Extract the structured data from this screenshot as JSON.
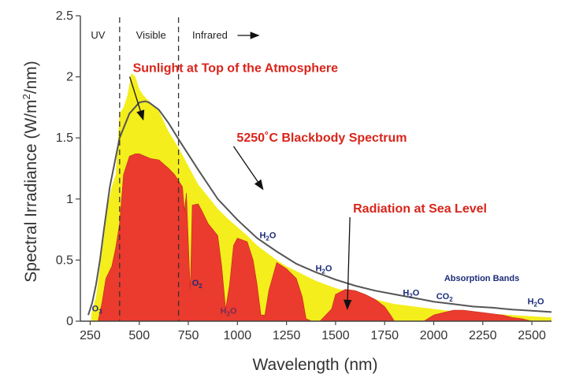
{
  "chart_data": {
    "type": "area",
    "xlabel": "Wavelength (nm)",
    "ylabel_main": "Spectral Irradiance (W/m",
    "ylabel_sup": "2",
    "ylabel_tail": "/nm)",
    "xlim": [
      200,
      2600
    ],
    "ylim": [
      0,
      2.5
    ],
    "x_ticks": [
      250,
      500,
      750,
      1000,
      1250,
      1500,
      1750,
      2000,
      2250,
      2500
    ],
    "y_ticks": [
      0,
      0.5,
      1,
      1.5,
      2,
      2.5
    ],
    "y_tick_labels": [
      "0",
      "0.5",
      "1",
      "1.5",
      "2",
      "2.5"
    ],
    "region_boundaries": [
      400,
      700
    ],
    "regions": [
      {
        "label": "UV",
        "x": 290
      },
      {
        "label": "Visible",
        "x": 560
      },
      {
        "label": "Infrared",
        "x": 860
      }
    ],
    "series": [
      {
        "name": "Sunlight at Top of the Atmosphere",
        "color": "#f4ee1c",
        "x": [
          255,
          280,
          300,
          320,
          340,
          360,
          380,
          400,
          420,
          440,
          460,
          480,
          500,
          520,
          550,
          600,
          650,
          700,
          750,
          800,
          850,
          900,
          950,
          1000,
          1050,
          1100,
          1150,
          1200,
          1250,
          1300,
          1350,
          1400,
          1450,
          1500,
          1550,
          1600,
          1650,
          1700,
          1750,
          1800,
          1850,
          1900,
          2000,
          2100,
          2200,
          2300,
          2400,
          2500,
          2600
        ],
        "y": [
          0.05,
          0.2,
          0.45,
          0.7,
          0.95,
          1.1,
          1.2,
          1.7,
          1.75,
          1.85,
          2.03,
          2.0,
          1.9,
          1.85,
          1.8,
          1.72,
          1.55,
          1.42,
          1.27,
          1.12,
          1.02,
          0.92,
          0.84,
          0.77,
          0.7,
          0.62,
          0.56,
          0.5,
          0.45,
          0.41,
          0.37,
          0.33,
          0.3,
          0.27,
          0.25,
          0.23,
          0.2,
          0.18,
          0.16,
          0.14,
          0.13,
          0.12,
          0.1,
          0.08,
          0.07,
          0.06,
          0.05,
          0.04,
          0.03
        ]
      },
      {
        "name": "5250°C Blackbody Spectrum",
        "color": "#555555",
        "x": [
          240,
          260,
          280,
          300,
          320,
          350,
          400,
          450,
          500,
          530,
          550,
          600,
          650,
          700,
          800,
          900,
          1000,
          1100,
          1200,
          1300,
          1400,
          1500,
          1600,
          1700,
          1800,
          1900,
          2000,
          2100,
          2200,
          2300,
          2400,
          2500,
          2600
        ],
        "y": [
          0.05,
          0.15,
          0.3,
          0.5,
          0.75,
          1.1,
          1.5,
          1.7,
          1.79,
          1.8,
          1.79,
          1.73,
          1.62,
          1.49,
          1.24,
          1.0,
          0.83,
          0.68,
          0.57,
          0.47,
          0.4,
          0.34,
          0.29,
          0.25,
          0.22,
          0.19,
          0.16,
          0.14,
          0.12,
          0.11,
          0.095,
          0.085,
          0.075
        ]
      },
      {
        "name": "Radiation at Sea Level",
        "color": "#ea3b2e",
        "x": [
          290,
          310,
          330,
          360,
          380,
          400,
          420,
          450,
          480,
          500,
          530,
          560,
          600,
          650,
          680,
          700,
          720,
          730,
          740,
          760,
          765,
          770,
          800,
          820,
          850,
          900,
          920,
          940,
          960,
          980,
          1000,
          1050,
          1080,
          1100,
          1120,
          1140,
          1160,
          1200,
          1250,
          1300,
          1330,
          1350,
          1380,
          1400,
          1420,
          1450,
          1480,
          1500,
          1550,
          1600,
          1650,
          1700,
          1750,
          1780,
          1800,
          1850,
          1900,
          1950,
          1970,
          2000,
          2050,
          2100,
          2150,
          2200,
          2250,
          2300,
          2350,
          2400,
          2450,
          2500,
          2550,
          2600
        ],
        "y": [
          0.0,
          0.15,
          0.35,
          0.45,
          0.6,
          0.8,
          1.2,
          1.35,
          1.37,
          1.37,
          1.35,
          1.33,
          1.32,
          1.25,
          1.2,
          1.15,
          1.1,
          0.9,
          1.05,
          0.25,
          0.6,
          0.95,
          0.96,
          0.9,
          0.8,
          0.7,
          0.45,
          0.1,
          0.3,
          0.62,
          0.68,
          0.65,
          0.5,
          0.3,
          0.05,
          0.05,
          0.25,
          0.48,
          0.43,
          0.35,
          0.2,
          0.02,
          0.0,
          0.0,
          0.0,
          0.05,
          0.1,
          0.22,
          0.26,
          0.25,
          0.22,
          0.18,
          0.12,
          0.05,
          0.0,
          0.0,
          0.0,
          0.0,
          0.02,
          0.05,
          0.07,
          0.09,
          0.09,
          0.08,
          0.07,
          0.06,
          0.05,
          0.03,
          0.02,
          0.0,
          0.0,
          0.0
        ]
      }
    ],
    "annotations": [
      {
        "text": "Sunlight at Top of the Atmosphere",
        "color": "#d8251b",
        "x": 990,
        "y": 2.04,
        "arrow_to": [
          520,
          1.65
        ]
      },
      {
        "text": "5250˚C Blackbody Spectrum",
        "color": "#d8251b",
        "x": 1430,
        "y": 1.47,
        "arrow_to": [
          1130,
          1.08
        ]
      },
      {
        "text": "Radiation at Sea Level",
        "color": "#d8251b",
        "x": 1930,
        "y": 0.89,
        "arrow_to": [
          1560,
          0.1
        ]
      }
    ],
    "band_labels": [
      {
        "base": "O",
        "sub": "3",
        "x": 285,
        "y": 0.08,
        "color": "#1c2c7a"
      },
      {
        "base": "O",
        "sub": "2",
        "x": 795,
        "y": 0.29,
        "color": "#1c2c7a"
      },
      {
        "base": "H",
        "sub": "2",
        "tail": "O",
        "x": 955,
        "y": 0.06,
        "color": "#7a2a55"
      },
      {
        "base": "H",
        "sub": "2",
        "tail": "O",
        "x": 1155,
        "y": 0.68,
        "color": "#1c2c7a"
      },
      {
        "base": "H",
        "sub": "2",
        "tail": "O",
        "x": 1440,
        "y": 0.41,
        "color": "#1c2c7a"
      },
      {
        "base": "H",
        "sub": "2",
        "tail": "O",
        "x": 1885,
        "y": 0.21,
        "color": "#1c2c7a"
      },
      {
        "base": "CO",
        "sub": "2",
        "x": 2055,
        "y": 0.18,
        "color": "#1c2c7a"
      },
      {
        "base": "H",
        "sub": "2",
        "tail": "O",
        "x": 2520,
        "y": 0.14,
        "color": "#1c2c7a"
      },
      {
        "base": "Absorption Bands",
        "x": 2245,
        "y": 0.33,
        "color": "#1c2c7a"
      }
    ]
  }
}
